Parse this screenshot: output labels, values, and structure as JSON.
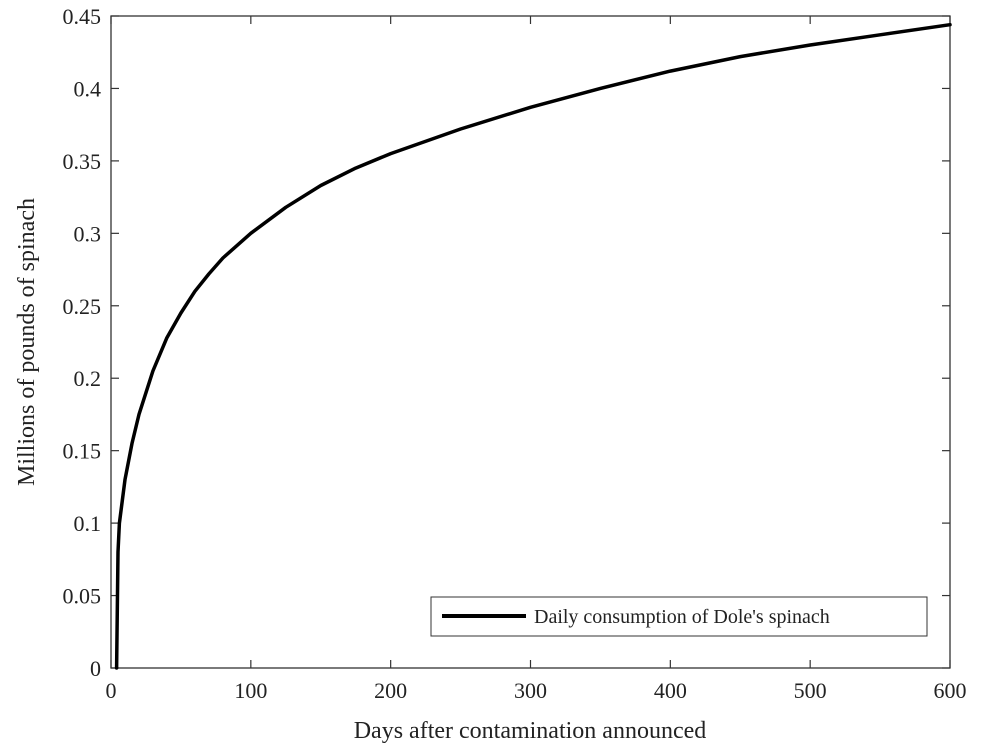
{
  "chart_data": {
    "type": "line",
    "title": "",
    "xlabel": "Days after contamination announced",
    "ylabel": "Millions of pounds of spinach",
    "xlim": [
      0,
      600
    ],
    "ylim": [
      0,
      0.45
    ],
    "xticks": [
      0,
      100,
      200,
      300,
      400,
      500,
      600
    ],
    "yticks": [
      0,
      0.05,
      0.1,
      0.15,
      0.2,
      0.25,
      0.3,
      0.35,
      0.4,
      0.45
    ],
    "xtick_labels": [
      "0",
      "100",
      "200",
      "300",
      "400",
      "500",
      "600"
    ],
    "ytick_labels": [
      "0",
      "0.05",
      "0.1",
      "0.15",
      "0.2",
      "0.25",
      "0.3",
      "0.35",
      "0.4",
      "0.45"
    ],
    "grid": false,
    "legend_position": "bottom-right",
    "series": [
      {
        "name": "Daily consumption of Dole's spinach",
        "color": "#000000",
        "x": [
          4,
          5,
          6,
          8,
          10,
          15,
          20,
          30,
          40,
          50,
          60,
          70,
          80,
          100,
          125,
          150,
          175,
          200,
          250,
          300,
          350,
          400,
          450,
          500,
          550,
          600
        ],
        "y": [
          0,
          0.08,
          0.1,
          0.115,
          0.13,
          0.155,
          0.175,
          0.205,
          0.228,
          0.245,
          0.26,
          0.272,
          0.283,
          0.3,
          0.318,
          0.333,
          0.345,
          0.355,
          0.372,
          0.387,
          0.4,
          0.412,
          0.422,
          0.43,
          0.437,
          0.444
        ]
      }
    ]
  }
}
